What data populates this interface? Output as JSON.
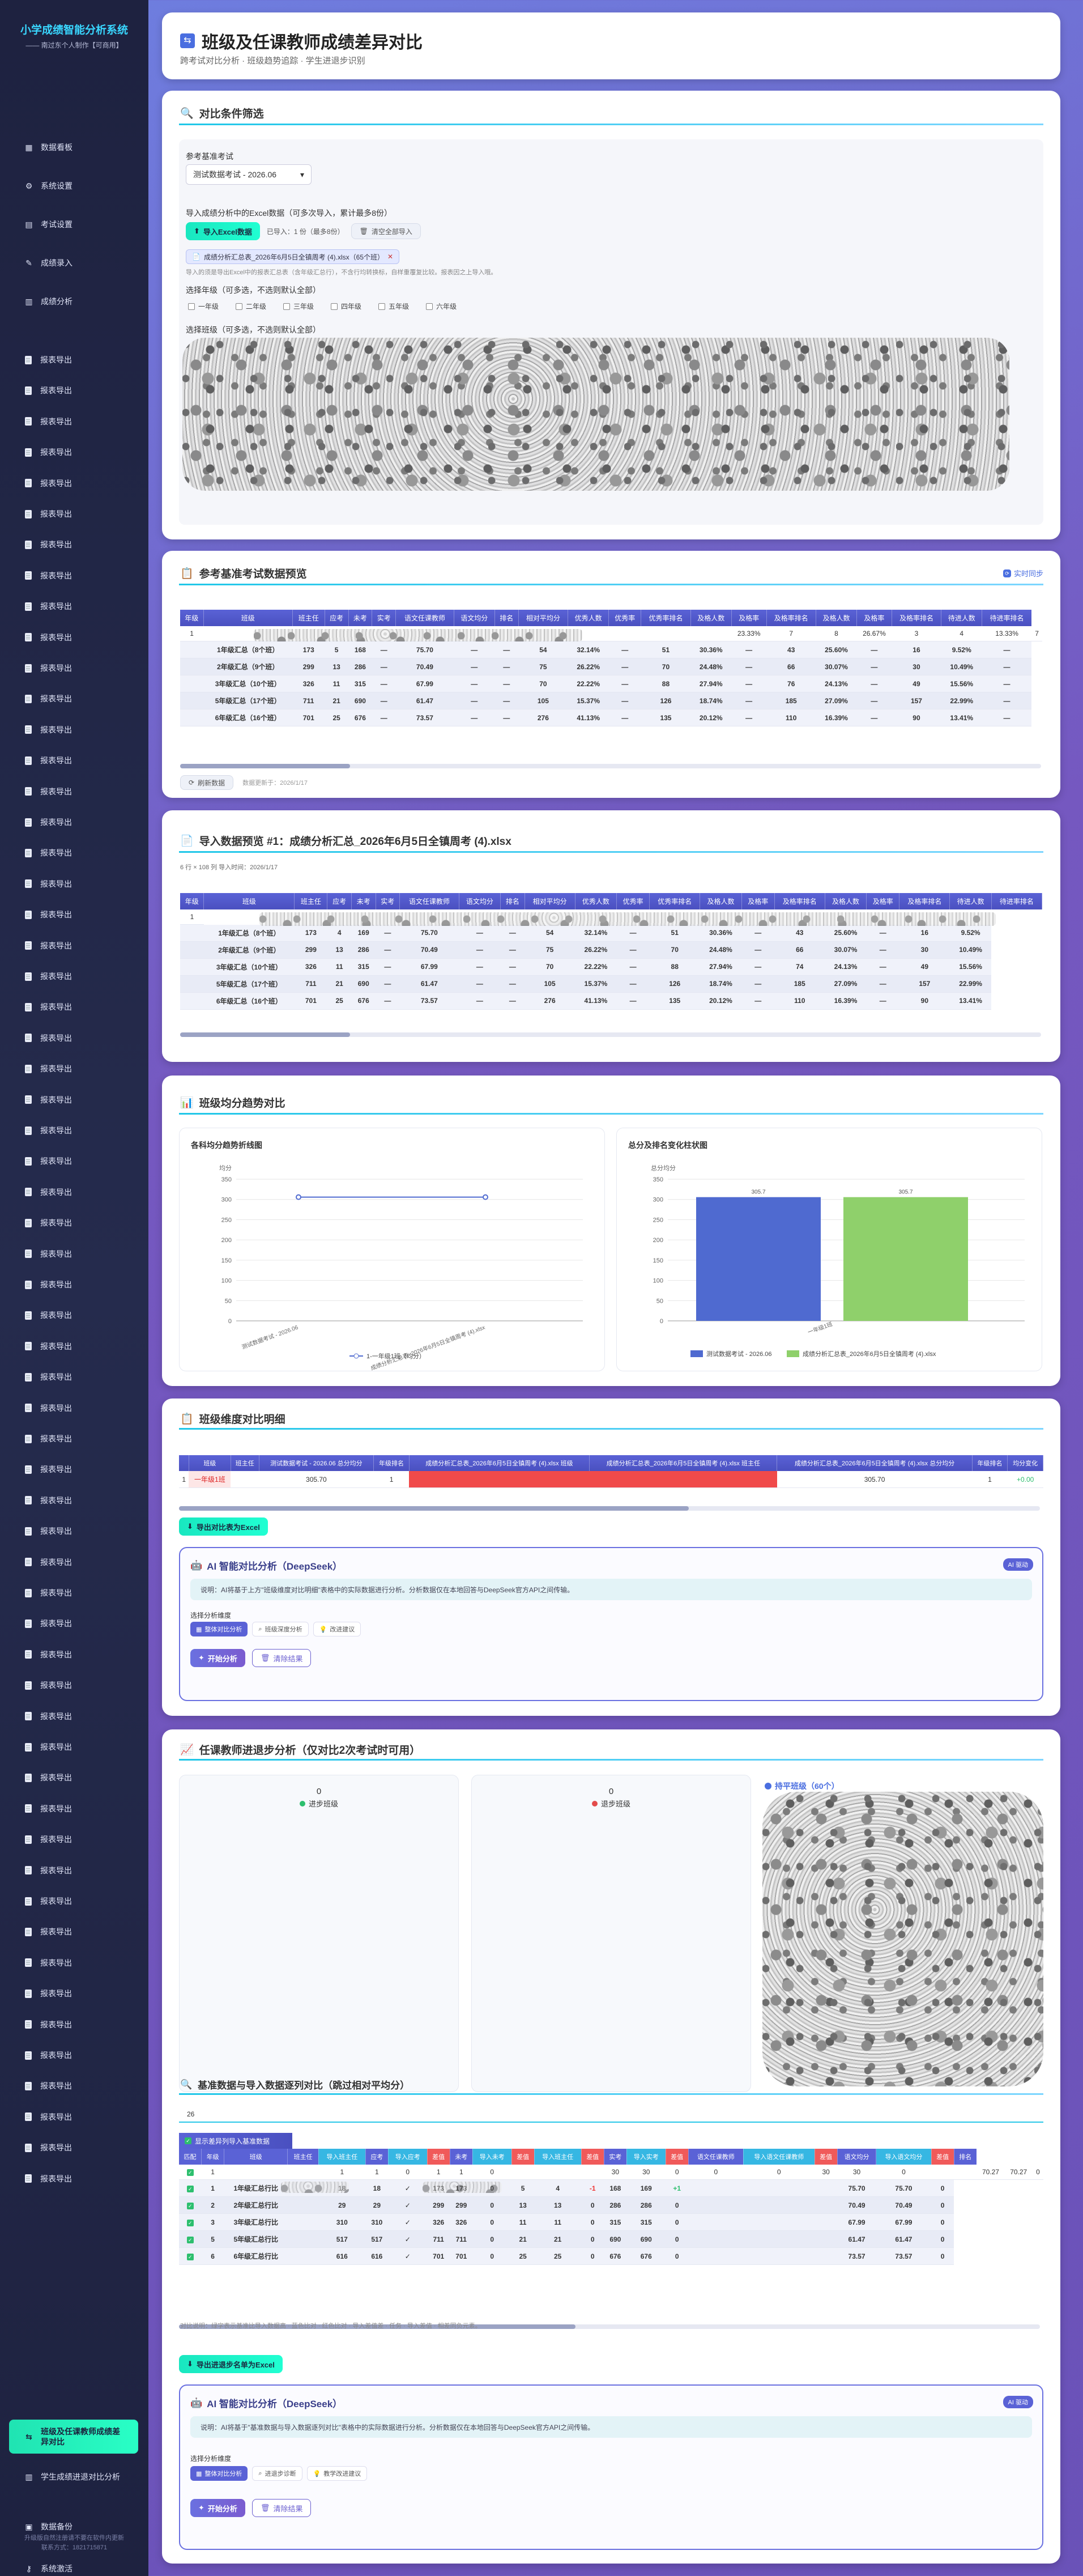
{
  "sidebar": {
    "title": "小学成绩智能分析系统",
    "subtitle": "—— 南过东个人制作【可商用】",
    "items": [
      {
        "label": "数据看板",
        "icon": "dashboard-icon"
      },
      {
        "label": "系统设置",
        "icon": "gear-icon"
      },
      {
        "label": "考试设置",
        "icon": "calendar-icon"
      },
      {
        "label": "成绩录入",
        "icon": "edit-icon"
      },
      {
        "label": "成绩分析",
        "icon": "chart-icon"
      }
    ],
    "export_label": "报表导出",
    "active": "班级及任课教师成绩差异对比",
    "bottom": [
      {
        "label": "学生成绩进退对比分析"
      },
      {
        "label": "数据备份"
      },
      {
        "label": "系统激活"
      }
    ],
    "foot1": "升级版自然注册请不要在软件内更新",
    "foot2": "联系方式：1821715871"
  },
  "header": {
    "title": "班级及任课教师成绩差异对比",
    "subtitle": "跨考试对比分析 · 班级趋势追踪 · 学生进退步识别"
  },
  "filter": {
    "title": "对比条件筛选",
    "base_label": "参考基准考试",
    "base_value": "测试数据考试 - 2026.06",
    "import_label": "导入成绩分析中的Excel数据（可多次导入，累计最多8份）",
    "import_btn": "导入Excel数据",
    "import_count": "已导入：1 份（最多8份）",
    "clear_btn": "清空全部导入",
    "file_tag": "成绩分析汇总表_2026年6月5日全镇周考 (4).xlsx（65个班）",
    "hint": "导入的须是导出Excel中的报表汇总表（含年级汇总行），不含行均转换标，自样重覆复比较。报表因之上导入哦。",
    "grade_label": "选择年级（可多选，不选则默认全部）",
    "grades": [
      "一年级",
      "二年级",
      "三年级",
      "四年级",
      "五年级",
      "六年级"
    ],
    "class_label": "选择班级（可多选，不选则默认全部）"
  },
  "base_preview": {
    "title": "参考基准考试数据预览",
    "sync": "实时同步",
    "refresh_btn": "刷新数据",
    "update_time": "数据更新于：2026/1/17",
    "columns": [
      "年级",
      "班级",
      "班主任",
      "应考",
      "未考",
      "实考",
      "语文任课教师",
      "语文均分",
      "排名",
      "相对平均分",
      "优秀人数",
      "优秀率",
      "优秀率排名",
      "及格人数",
      "及格率",
      "及格率排名",
      "及格人数",
      "及格率",
      "及格率排名",
      "待进人数",
      "待进率排名"
    ],
    "first_row": [
      "1",
      "",
      "",
      "",
      "",
      "",
      "",
      "",
      "",
      "",
      "",
      "",
      "",
      "",
      "23.33%",
      "7",
      "8",
      "26.67%",
      "3",
      "4",
      "13.33%",
      "7"
    ],
    "rows": [
      [
        "1年级汇总（8个班）",
        "173",
        "5",
        "168",
        "—",
        "75.70",
        "—",
        "—",
        "54",
        "32.14%",
        "—",
        "51",
        "30.36%",
        "—",
        "43",
        "25.60%",
        "—",
        "16",
        "9.52%",
        "—"
      ],
      [
        "2年级汇总（9个班）",
        "299",
        "13",
        "286",
        "—",
        "70.49",
        "—",
        "—",
        "75",
        "26.22%",
        "—",
        "70",
        "24.48%",
        "—",
        "66",
        "30.07%",
        "—",
        "30",
        "10.49%",
        "—"
      ],
      [
        "3年级汇总（10个班）",
        "326",
        "11",
        "315",
        "—",
        "67.99",
        "—",
        "—",
        "70",
        "22.22%",
        "—",
        "88",
        "27.94%",
        "—",
        "76",
        "24.13%",
        "—",
        "49",
        "15.56%",
        "—"
      ],
      [
        "5年级汇总（17个班）",
        "711",
        "21",
        "690",
        "—",
        "61.47",
        "—",
        "—",
        "105",
        "15.37%",
        "—",
        "126",
        "18.74%",
        "—",
        "185",
        "27.09%",
        "—",
        "157",
        "22.99%",
        "—"
      ],
      [
        "6年级汇总（16个班）",
        "701",
        "25",
        "676",
        "—",
        "73.57",
        "—",
        "—",
        "276",
        "41.13%",
        "—",
        "135",
        "20.12%",
        "—",
        "110",
        "16.39%",
        "—",
        "90",
        "13.41%",
        "—"
      ]
    ]
  },
  "import_preview": {
    "title": "导入数据预览 #1：成绩分析汇总_2026年6月5日全镇周考 (4).xlsx",
    "meta": "6 行 × 108 列  导入时间：2026/1/17",
    "columns": [
      "年级",
      "班级",
      "班主任",
      "应考",
      "未考",
      "实考",
      "语文任课教师",
      "语文均分",
      "排名",
      "相对平均分",
      "优秀人数",
      "优秀率",
      "优秀率排名",
      "及格人数",
      "及格率",
      "及格率排名",
      "及格人数",
      "及格率",
      "及格率排名",
      "待进人数",
      "待进率排名"
    ],
    "rows": [
      [
        "1年级汇总（8个班）",
        "173",
        "4",
        "169",
        "—",
        "75.70",
        "—",
        "—",
        "54",
        "32.14%",
        "—",
        "51",
        "30.36%",
        "—",
        "43",
        "25.60%",
        "—",
        "16",
        "9.52%"
      ],
      [
        "2年级汇总（9个班）",
        "299",
        "13",
        "286",
        "—",
        "70.49",
        "—",
        "—",
        "75",
        "26.22%",
        "—",
        "70",
        "24.48%",
        "—",
        "66",
        "30.07%",
        "—",
        "30",
        "10.49%"
      ],
      [
        "3年级汇总（10个班）",
        "326",
        "11",
        "315",
        "—",
        "67.99",
        "—",
        "—",
        "70",
        "22.22%",
        "—",
        "88",
        "27.94%",
        "—",
        "74",
        "24.13%",
        "—",
        "49",
        "15.56%"
      ],
      [
        "5年级汇总（17个班）",
        "711",
        "21",
        "690",
        "—",
        "61.47",
        "—",
        "—",
        "105",
        "15.37%",
        "—",
        "126",
        "18.74%",
        "—",
        "185",
        "27.09%",
        "—",
        "157",
        "22.99%"
      ],
      [
        "6年级汇总（16个班）",
        "701",
        "25",
        "676",
        "—",
        "73.57",
        "—",
        "—",
        "276",
        "41.13%",
        "—",
        "135",
        "20.12%",
        "—",
        "110",
        "16.39%",
        "—",
        "90",
        "13.41%"
      ]
    ]
  },
  "trend": {
    "title": "班级均分趋势对比",
    "chart_data": [
      {
        "type": "line",
        "title": "各科均分趋势折线图",
        "ylabel": "均分",
        "ylim": [
          0,
          350
        ],
        "yticks": [
          0,
          50,
          100,
          150,
          200,
          250,
          300,
          350
        ],
        "categories": [
          "测试数据考试 - 2026.06",
          "成绩分析汇总表_2026年6月5日全镇周考 (4).xlsx"
        ],
        "series": [
          {
            "name": "1-一年级1班（均分）",
            "values": [
              305.7,
              305.7
            ]
          }
        ]
      },
      {
        "type": "bar",
        "title": "总分及排名变化柱状图",
        "ylabel": "总分均分",
        "ylim": [
          0,
          350
        ],
        "yticks": [
          0,
          50,
          100,
          150,
          200,
          250,
          300,
          350
        ],
        "categories": [
          "一年级1班"
        ],
        "series": [
          {
            "name": "测试数据考试 - 2026.06",
            "values": [
              305.7
            ],
            "color": "#4f6ad0"
          },
          {
            "name": "成绩分析汇总表_2026年6月5日全镇周考 (4).xlsx",
            "values": [
              305.7
            ],
            "color": "#8fd06b"
          }
        ]
      }
    ]
  },
  "detail": {
    "title": "班级维度对比明细",
    "columns": [
      "",
      "班级",
      "班主任",
      "测试数据考试 - 2026.06 总分均分",
      "年级排名",
      "成绩分析汇总表_2026年6月5日全镇周考 (4).xlsx 班级",
      "成绩分析汇总表_2026年6月5日全镇周考 (4).xlsx 班主任",
      "成绩分析汇总表_2026年6月5日全镇周考 (4).xlsx 总分均分",
      "年级排名",
      "均分变化"
    ],
    "row": [
      "1",
      "一年级1班",
      "",
      "305.70",
      "1",
      "",
      "",
      "305.70",
      "1",
      "+0.00"
    ],
    "export_btn": "导出对比表为Excel"
  },
  "ai1": {
    "title": "AI 智能对比分析（DeepSeek）",
    "badge": "AI 驱动",
    "note": "说明：AI将基于上方\"班级维度对比明细\"表格中的实际数据进行分析。分析数据仅在本地回答与DeepSeek官方API之间传输。",
    "dims_label": "选择分析维度",
    "dims": [
      "整体对比分析",
      "班级深度分析",
      "改进建议"
    ],
    "start": "开始分析",
    "clear": "清除结果"
  },
  "teacher": {
    "title": "任课教师进退步分析（仅对比2次考试时可用）",
    "progress_count": "0",
    "progress_label": "进步班级",
    "regress_count": "0",
    "regress_label": "退步班级",
    "flat_label": "持平班级（60个）"
  },
  "compare": {
    "title": "基准数据与导入数据逐列对比（跳过相对平均分）",
    "count": "26",
    "toggle": "显示差异列导入基准数据",
    "columns": [
      "匹配",
      "年级",
      "班级",
      "班主任",
      "导入班主任",
      "应考",
      "导入应考",
      "差值",
      "未考",
      "导入未考",
      "差值",
      "导入班主任",
      "差值",
      "实考",
      "导入实考",
      "差值",
      "语文任课教师",
      "导入语文任课教师",
      "差值",
      "语文均分",
      "导入语文均分",
      "差值",
      "排名"
    ],
    "rows": [
      [
        "1",
        "",
        "",
        "1",
        "1",
        "0",
        "1",
        "1",
        "0",
        "",
        "",
        "",
        "30",
        "30",
        "0",
        "0",
        "0",
        "30",
        "30",
        "0",
        "",
        "",
        "70.27",
        "70.27",
        "0"
      ],
      [
        "1",
        "1年级汇总行比",
        "",
        "18",
        "18",
        "✓",
        "173",
        "173",
        "0",
        "5",
        "4",
        "-1",
        "168",
        "169",
        "+1",
        "",
        "",
        "",
        "75.70",
        "75.70",
        "0"
      ],
      [
        "2",
        "2年级汇总行比",
        "",
        "29",
        "29",
        "✓",
        "299",
        "299",
        "0",
        "13",
        "13",
        "0",
        "286",
        "286",
        "0",
        "",
        "",
        "",
        "70.49",
        "70.49",
        "0"
      ],
      [
        "3",
        "3年级汇总行比",
        "",
        "310",
        "310",
        "✓",
        "326",
        "326",
        "0",
        "11",
        "11",
        "0",
        "315",
        "315",
        "0",
        "",
        "",
        "",
        "67.99",
        "67.99",
        "0"
      ],
      [
        "5",
        "5年级汇总行比",
        "",
        "517",
        "517",
        "✓",
        "711",
        "711",
        "0",
        "21",
        "21",
        "0",
        "690",
        "690",
        "0",
        "",
        "",
        "",
        "61.47",
        "61.47",
        "0"
      ],
      [
        "6",
        "6年级汇总行比",
        "",
        "616",
        "616",
        "✓",
        "701",
        "701",
        "0",
        "25",
        "25",
        "0",
        "676",
        "676",
        "0",
        "",
        "",
        "",
        "73.57",
        "73.57",
        "0"
      ]
    ],
    "legend": "对比说明：绿字表示基准比导入数据高 · 蓝色比对 · 红色比对 · 导入差值差 · 任务 · 导入差值 · 相差同负元素。",
    "export_btn": "导出进退步名单为Excel"
  },
  "ai2": {
    "title": "AI 智能对比分析（DeepSeek）",
    "badge": "AI 驱动",
    "note": "说明：AI将基于\"基准数据与导入数据逐列对比\"表格中的实际数据进行分析。分析数据仅在本地回答与DeepSeek官方API之间传输。",
    "dims_label": "选择分析维度",
    "dims": [
      "整体对比分析",
      "进退步诊断",
      "教学改进建议"
    ],
    "start": "开始分析",
    "clear": "清除结果"
  }
}
